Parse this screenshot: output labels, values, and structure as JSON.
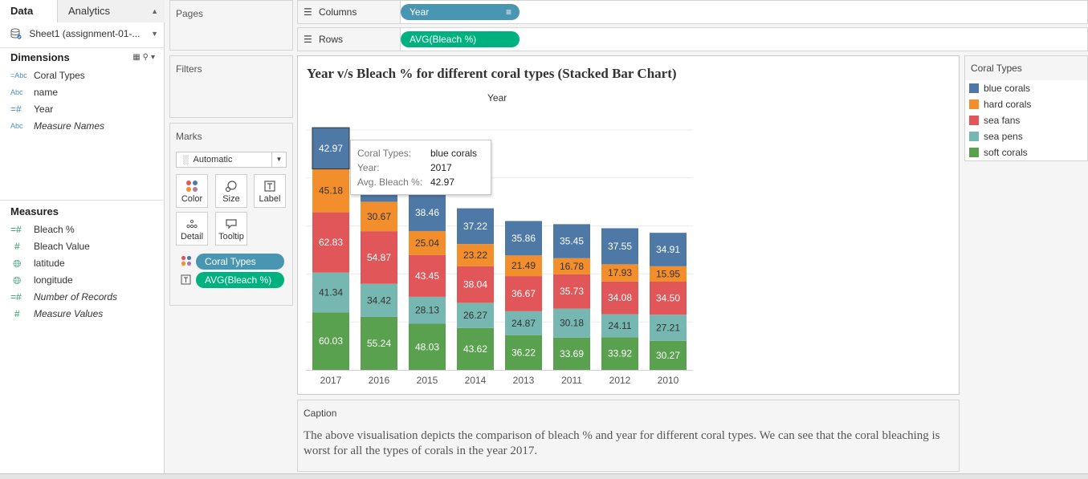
{
  "left_pane": {
    "tabs": [
      {
        "label": "Data"
      },
      {
        "label": "Analytics"
      }
    ],
    "source": "Sheet1 (assignment-01-...",
    "dimensions": {
      "title": "Dimensions",
      "fields": [
        {
          "type": "=Abc",
          "name": "Coral Types"
        },
        {
          "type": "Abc",
          "name": "name"
        },
        {
          "type": "=#",
          "name": "Year"
        },
        {
          "type": "Abc",
          "name": "Measure Names"
        }
      ]
    },
    "measures": {
      "title": "Measures",
      "fields": [
        {
          "type": "=#",
          "name": "Bleach %"
        },
        {
          "type": "#",
          "name": "Bleach Value"
        },
        {
          "type": "globe",
          "name": "latitude"
        },
        {
          "type": "globe",
          "name": "longitude"
        },
        {
          "type": "=#",
          "name": "Number of Records"
        },
        {
          "type": "#",
          "name": "Measure Values"
        }
      ]
    }
  },
  "cards": {
    "pages": {
      "title": "Pages"
    },
    "filters": {
      "title": "Filters"
    },
    "marks": {
      "title": "Marks",
      "mark_type": "Automatic",
      "buttons": [
        {
          "label": "Color",
          "icon": "color-dots-icon"
        },
        {
          "label": "Size",
          "icon": "size-icon"
        },
        {
          "label": "Label",
          "icon": "label-icon"
        },
        {
          "label": "Detail",
          "icon": "detail-icon"
        },
        {
          "label": "Tooltip",
          "icon": "tooltip-icon"
        }
      ],
      "pills": [
        {
          "label": "Coral Types",
          "kind": "dimension"
        },
        {
          "label": "AVG(Bleach %)",
          "kind": "measure"
        }
      ]
    }
  },
  "shelves": {
    "columns": {
      "label": "Columns",
      "pill": "Year"
    },
    "rows": {
      "label": "Rows",
      "pill": "AVG(Bleach %)"
    }
  },
  "view": {
    "title": "Year v/s Bleach % for different coral types (Stacked Bar Chart)",
    "column_header": "Year"
  },
  "legend": {
    "title": "Coral Types",
    "items": [
      {
        "label": "blue corals",
        "color": "#4e79a7"
      },
      {
        "label": "hard corals",
        "color": "#f28e2b"
      },
      {
        "label": "sea fans",
        "color": "#e15759"
      },
      {
        "label": "sea pens",
        "color": "#76b7b2"
      },
      {
        "label": "soft corals",
        "color": "#59a14f"
      }
    ]
  },
  "tooltip": {
    "rows": [
      {
        "key": "Coral Types:",
        "value": "blue corals"
      },
      {
        "key": "Year:",
        "value": "2017"
      },
      {
        "key": "Avg. Bleach %:",
        "value": "42.97"
      }
    ]
  },
  "caption": {
    "title": "Caption",
    "text": "The above visualisation depicts the comparison of bleach % and year for different coral types. We can see that the coral bleaching is worst for all the types of corals in the year 2017."
  },
  "chart_data": {
    "type": "bar",
    "stacked": true,
    "title": "Year v/s Bleach % for different coral types (Stacked Bar Chart)",
    "xlabel": "Year",
    "ylabel": "",
    "categories": [
      "2017",
      "2016",
      "2015",
      "2014",
      "2013",
      "2011",
      "2012",
      "2010"
    ],
    "ylim": [
      0,
      260
    ],
    "grid": true,
    "legend_position": "right",
    "highlighted": {
      "series": "blue corals",
      "category": "2017"
    },
    "series": [
      {
        "name": "soft corals",
        "color": "#59a14f",
        "values": [
          60.03,
          55.24,
          48.03,
          43.62,
          36.22,
          33.69,
          33.92,
          30.27
        ]
      },
      {
        "name": "sea pens",
        "color": "#76b7b2",
        "values": [
          41.34,
          34.42,
          28.13,
          26.27,
          24.87,
          30.18,
          24.11,
          27.21
        ]
      },
      {
        "name": "sea fans",
        "color": "#e15759",
        "values": [
          62.83,
          54.87,
          43.45,
          38.04,
          36.67,
          35.73,
          34.08,
          34.5
        ]
      },
      {
        "name": "hard corals",
        "color": "#f28e2b",
        "values": [
          45.18,
          30.67,
          25.04,
          23.22,
          21.49,
          16.78,
          17.93,
          15.95
        ]
      },
      {
        "name": "blue corals",
        "color": "#4e79a7",
        "values": [
          42.97,
          45.0,
          38.46,
          37.22,
          35.86,
          35.45,
          37.55,
          34.91
        ]
      }
    ],
    "data_labels": [
      [
        "60.03",
        "55.24",
        "48.03",
        "43.62",
        "36.22",
        "33.69",
        "33.92",
        "30.27"
      ],
      [
        "41.34",
        "34.42",
        "28.13",
        "26.27",
        "24.87",
        "30.18",
        "24.11",
        "27.21"
      ],
      [
        "62.83",
        "54.87",
        "43.45",
        "38.04",
        "36.67",
        "35.73",
        "34.08",
        "34.50"
      ],
      [
        "45.18",
        "30.67",
        "25.04",
        "23.22",
        "21.49",
        "16.78",
        "17.93",
        "15.95"
      ],
      [
        "42.97",
        "",
        "38.46",
        "37.22",
        "35.86",
        "35.45",
        "37.55",
        "34.91"
      ]
    ]
  }
}
